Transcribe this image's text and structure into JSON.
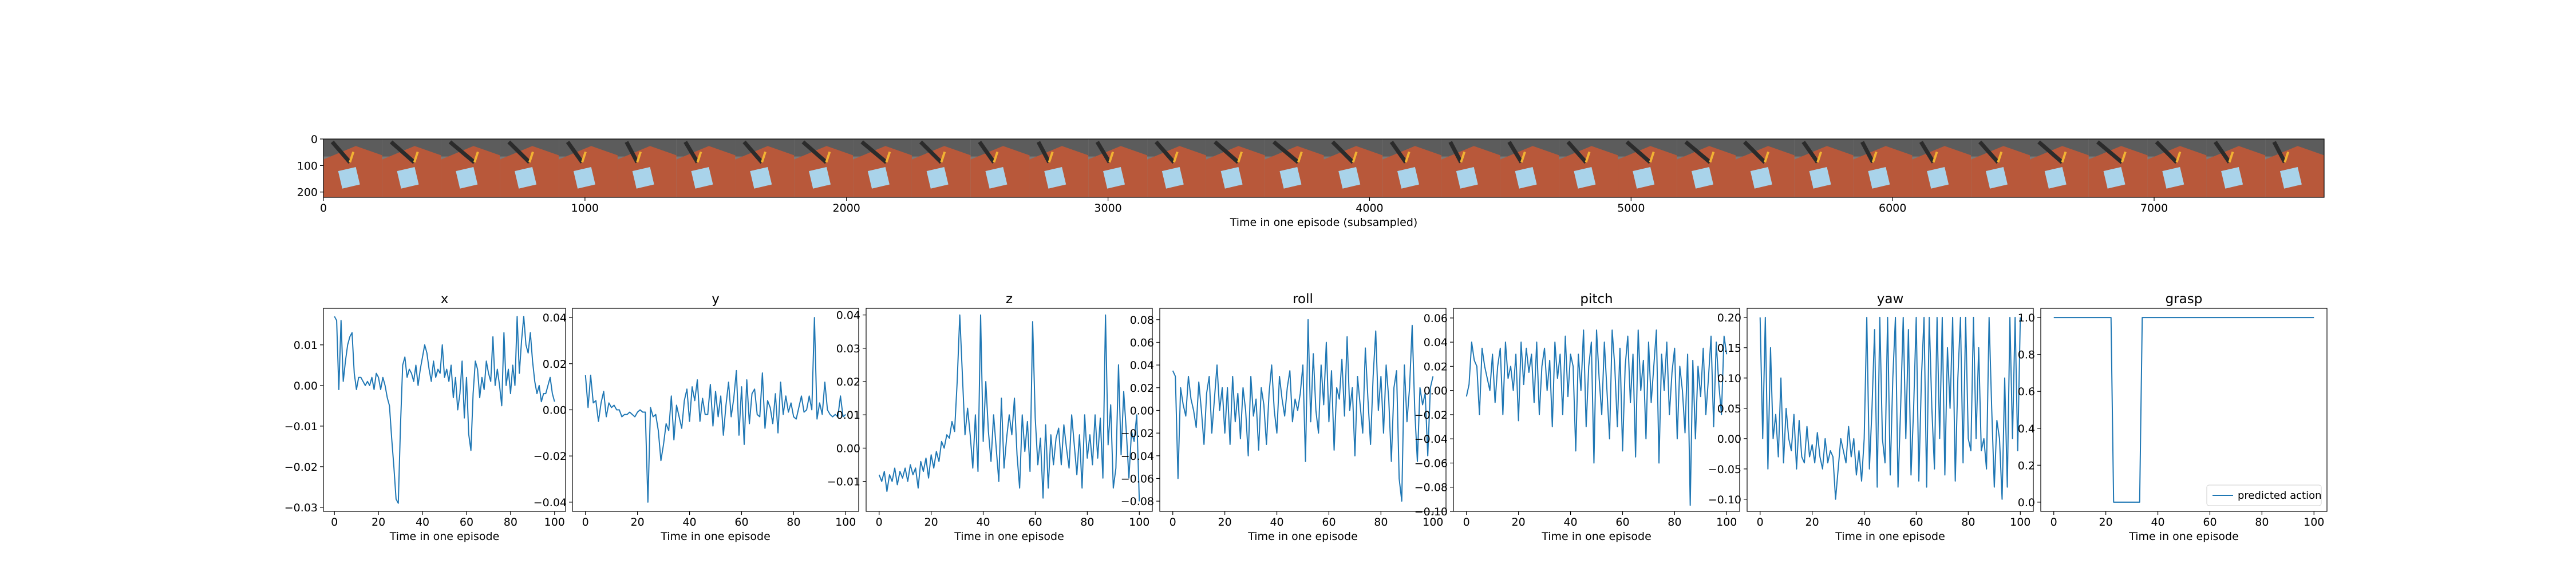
{
  "chart_data": [
    {
      "type": "image",
      "title": "",
      "xlabel": "Time in one episode (subsampled)",
      "ylabel": "",
      "xlim": [
        0,
        7650
      ],
      "ylim": [
        0,
        220
      ],
      "xticks": [
        0,
        1000,
        2000,
        3000,
        4000,
        5000,
        6000,
        7000
      ],
      "yticks": [
        0,
        100,
        200
      ],
      "frames": 34
    },
    {
      "type": "line",
      "title": "x",
      "xlabel": "Time in one episode",
      "xlim": [
        -5,
        105
      ],
      "ylim": [
        -0.031,
        0.019
      ],
      "xticks": [
        0,
        20,
        40,
        60,
        80,
        100
      ],
      "yticks": [
        -0.03,
        -0.02,
        -0.01,
        0.0,
        0.01
      ],
      "yfmt": 2,
      "series": [
        {
          "values": [
            0.017,
            0.016,
            -0.001,
            0.016,
            0.001,
            0.006,
            0.01,
            0.012,
            0.013,
            0.003,
            -0.001,
            0.002,
            0.002,
            0.001,
            0.0,
            0.001,
            0.0,
            0.002,
            -0.001,
            0.003,
            0.002,
            -0.001,
            0.002,
            0.0,
            -0.003,
            -0.005,
            -0.013,
            -0.02,
            -0.028,
            -0.029,
            -0.01,
            0.005,
            0.007,
            0.002,
            0.004,
            0.003,
            0.001,
            0.005,
            0.0,
            0.004,
            0.007,
            0.01,
            0.008,
            0.004,
            0.001,
            0.006,
            0.002,
            0.004,
            0.003,
            0.01,
            0.002,
            0.004,
            0.001,
            0.005,
            -0.003,
            0.002,
            -0.006,
            -0.002,
            0.006,
            -0.008,
            0.002,
            -0.012,
            -0.016,
            -0.002,
            0.006,
            0.004,
            -0.003,
            0.002,
            -0.001,
            0.006,
            0.003,
            0.001,
            0.012,
            0.0,
            0.004,
            0.0,
            -0.005,
            0.013,
            0.0,
            0.004,
            -0.002,
            0.005,
            0.0,
            0.017,
            0.003,
            0.011,
            0.017,
            0.01,
            0.008,
            0.013,
            0.006,
            0.001,
            -0.002,
            0.0,
            -0.004,
            -0.002,
            -0.002,
            0.0,
            0.002,
            -0.002,
            -0.004
          ]
        }
      ]
    },
    {
      "type": "line",
      "title": "y",
      "xlabel": "Time in one episode",
      "xlim": [
        -5,
        105
      ],
      "ylim": [
        -0.044,
        0.044
      ],
      "xticks": [
        0,
        20,
        40,
        60,
        80,
        100
      ],
      "yticks": [
        -0.04,
        -0.02,
        0.0,
        0.02,
        0.04
      ],
      "yfmt": 2,
      "series": [
        {
          "values": [
            0.015,
            0.001,
            0.015,
            0.003,
            0.004,
            -0.005,
            0.003,
            0.008,
            -0.003,
            0.003,
            0.001,
            0.002,
            0.0,
            0.0,
            -0.003,
            -0.002,
            -0.002,
            -0.001,
            -0.002,
            -0.003,
            -0.001,
            0.0,
            -0.001,
            -0.001,
            -0.04,
            0.001,
            -0.003,
            -0.002,
            -0.009,
            -0.022,
            -0.015,
            -0.006,
            -0.009,
            0.006,
            -0.013,
            0.002,
            -0.003,
            -0.008,
            0.004,
            0.009,
            -0.005,
            0.01,
            0.004,
            0.013,
            -0.005,
            0.005,
            -0.002,
            -0.002,
            0.011,
            -0.007,
            0.008,
            -0.003,
            0.006,
            -0.011,
            0.002,
            0.012,
            -0.003,
            0.005,
            0.017,
            -0.011,
            0.01,
            -0.015,
            0.013,
            -0.006,
            0.007,
            0.009,
            -0.002,
            -0.003,
            0.016,
            -0.008,
            0.004,
            0.001,
            -0.006,
            0.007,
            -0.01,
            0.012,
            -0.002,
            0.006,
            -0.001,
            0.003,
            -0.003,
            -0.004,
            0.001,
            0.006,
            -0.001,
            0.0,
            0.006,
            0.0,
            0.04,
            -0.004,
            0.003,
            -0.002,
            0.012,
            0.0,
            -0.002,
            -0.003,
            -0.002,
            -0.003,
            0.006,
            -0.003,
            -0.002
          ]
        }
      ]
    },
    {
      "type": "line",
      "title": "z",
      "xlabel": "Time in one episode",
      "xlim": [
        -5,
        105
      ],
      "ylim": [
        -0.019,
        0.042
      ],
      "xticks": [
        0,
        20,
        40,
        60,
        80,
        100
      ],
      "yticks": [
        -0.01,
        0.0,
        0.01,
        0.02,
        0.03,
        0.04
      ],
      "yfmt": 2,
      "series": [
        {
          "values": [
            -0.008,
            -0.01,
            -0.007,
            -0.013,
            -0.008,
            -0.01,
            -0.006,
            -0.011,
            -0.007,
            -0.009,
            -0.006,
            -0.01,
            -0.005,
            -0.008,
            -0.006,
            -0.012,
            -0.004,
            -0.007,
            -0.003,
            -0.009,
            -0.002,
            -0.006,
            -0.001,
            -0.004,
            0.002,
            0.0,
            0.004,
            0.003,
            0.008,
            0.005,
            0.02,
            0.04,
            0.022,
            0.004,
            0.012,
            0.004,
            -0.006,
            0.01,
            -0.007,
            0.04,
            0.002,
            0.02,
            0.005,
            -0.004,
            0.01,
            0.0,
            -0.01,
            0.015,
            -0.006,
            0.003,
            0.01,
            0.004,
            0.015,
            -0.002,
            -0.012,
            0.01,
            -0.001,
            0.008,
            -0.007,
            0.038,
            0.009,
            -0.005,
            0.003,
            -0.015,
            0.007,
            -0.012,
            0.004,
            -0.005,
            0.003,
            0.006,
            -0.005,
            0.007,
            0.0,
            -0.006,
            0.01,
            0.001,
            -0.008,
            0.004,
            -0.012,
            0.01,
            -0.003,
            0.004,
            -0.005,
            0.01,
            -0.003,
            0.009,
            -0.009,
            0.04,
            0.001,
            0.013,
            -0.012,
            -0.006,
            0.025,
            -0.002,
            0.017,
            0.005,
            -0.009,
            0.005,
            0.002,
            0.01,
            -0.016
          ]
        }
      ]
    },
    {
      "type": "line",
      "title": "roll",
      "xlabel": "Time in one episode",
      "xlim": [
        -5,
        105
      ],
      "ylim": [
        -0.089,
        0.09
      ],
      "xticks": [
        0,
        20,
        40,
        60,
        80,
        100
      ],
      "yticks": [
        -0.08,
        -0.06,
        -0.04,
        -0.02,
        0.0,
        0.02,
        0.04,
        0.06,
        0.08
      ],
      "yfmt": 2,
      "series": [
        {
          "values": [
            0.035,
            0.03,
            -0.06,
            0.02,
            0.005,
            -0.005,
            0.03,
            0.01,
            0.0,
            -0.015,
            0.025,
            0.0,
            -0.03,
            0.015,
            0.03,
            -0.02,
            0.01,
            0.04,
            0.0,
            0.02,
            -0.02,
            0.02,
            -0.03,
            0.03,
            -0.01,
            0.015,
            -0.025,
            0.02,
            0.0,
            -0.04,
            0.03,
            -0.005,
            0.01,
            -0.035,
            0.02,
            0.005,
            -0.03,
            0.015,
            0.04,
            0.0,
            -0.02,
            0.03,
            0.01,
            -0.005,
            0.02,
            0.035,
            -0.01,
            0.01,
            0.0,
            0.015,
            0.04,
            -0.045,
            0.08,
            -0.01,
            0.05,
            0.0,
            -0.02,
            0.04,
            0.005,
            0.06,
            -0.01,
            0.035,
            -0.035,
            0.02,
            0.01,
            0.045,
            -0.005,
            0.065,
            0.0,
            0.02,
            -0.04,
            0.03,
            0.005,
            -0.02,
            0.055,
            0.01,
            -0.03,
            0.03,
            0.07,
            0.0,
            0.03,
            -0.02,
            0.04,
            0.01,
            -0.045,
            0.02,
            0.035,
            -0.06,
            -0.08,
            0.04,
            -0.01,
            0.02,
            0.075,
            0.0,
            -0.045,
            0.02,
            0.005,
            0.015,
            -0.04,
            0.02,
            0.03
          ]
        }
      ]
    },
    {
      "type": "line",
      "title": "pitch",
      "xlabel": "Time in one episode",
      "xlim": [
        -5,
        105
      ],
      "ylim": [
        -0.1,
        0.068
      ],
      "xticks": [
        0,
        20,
        40,
        60,
        80,
        100
      ],
      "yticks": [
        -0.1,
        -0.08,
        -0.06,
        -0.04,
        -0.02,
        0.0,
        0.02,
        0.04,
        0.06
      ],
      "yfmt": 2,
      "series": [
        {
          "values": [
            -0.005,
            0.005,
            0.04,
            0.025,
            0.02,
            -0.02,
            0.035,
            0.02,
            0.01,
            0.0,
            0.03,
            -0.01,
            0.02,
            0.035,
            -0.02,
            0.04,
            0.01,
            0.02,
            0.0,
            0.03,
            -0.025,
            0.04,
            0.005,
            0.035,
            0.015,
            0.03,
            -0.01,
            0.04,
            -0.02,
            0.02,
            0.035,
            0.0,
            0.025,
            -0.03,
            0.04,
            0.01,
            0.03,
            -0.02,
            0.045,
            -0.005,
            0.03,
            0.02,
            -0.05,
            0.03,
            0.0,
            0.05,
            -0.03,
            0.02,
            0.04,
            -0.06,
            0.05,
            0.01,
            -0.02,
            0.04,
            0.0,
            -0.04,
            0.05,
            0.02,
            -0.03,
            0.035,
            -0.05,
            0.02,
            0.045,
            -0.01,
            0.03,
            -0.055,
            0.05,
            0.0,
            0.025,
            -0.04,
            0.04,
            -0.01,
            0.02,
            0.05,
            -0.06,
            0.03,
            0.0,
            0.04,
            -0.02,
            0.015,
            0.035,
            -0.04,
            0.02,
            0.0,
            -0.035,
            0.03,
            -0.095,
            0.025,
            -0.04,
            0.02,
            -0.005,
            0.035,
            -0.02,
            0.01,
            0.045,
            -0.03,
            0.04,
            0.005,
            -0.02,
            0.045,
            0.03
          ]
        }
      ]
    },
    {
      "type": "line",
      "title": "yaw",
      "xlabel": "Time in one episode",
      "xlim": [
        -5,
        105
      ],
      "ylim": [
        -0.12,
        0.215
      ],
      "xticks": [
        0,
        20,
        40,
        60,
        80,
        100
      ],
      "yticks": [
        -0.1,
        -0.05,
        0.0,
        0.05,
        0.1,
        0.15,
        0.2
      ],
      "yfmt": 2,
      "series": [
        {
          "values": [
            0.2,
            0.0,
            0.2,
            -0.05,
            0.15,
            0.0,
            0.04,
            -0.03,
            0.1,
            -0.04,
            0.05,
            0.0,
            -0.02,
            0.04,
            -0.05,
            0.03,
            -0.03,
            -0.04,
            0.02,
            -0.03,
            -0.01,
            -0.04,
            0.01,
            -0.03,
            -0.05,
            0.0,
            -0.04,
            -0.02,
            -0.03,
            -0.1,
            -0.05,
            0.0,
            -0.02,
            -0.04,
            0.02,
            -0.03,
            0.0,
            -0.06,
            -0.02,
            -0.07,
            0.0,
            0.2,
            -0.05,
            0.05,
            0.18,
            -0.08,
            0.2,
            0.0,
            -0.04,
            0.2,
            -0.06,
            0.1,
            0.2,
            -0.08,
            0.05,
            0.2,
            0.0,
            0.18,
            -0.06,
            0.05,
            0.2,
            -0.07,
            0.1,
            0.2,
            -0.08,
            0.2,
            0.05,
            -0.05,
            0.2,
            0.0,
            0.2,
            -0.06,
            0.15,
            0.05,
            0.2,
            -0.07,
            0.1,
            0.2,
            -0.04,
            0.2,
            0.0,
            -0.02,
            0.2,
            0.0,
            0.15,
            -0.02,
            0.0,
            -0.05,
            0.2,
            0.05,
            -0.08,
            0.03,
            0.0,
            -0.1,
            0.1,
            -0.08,
            0.2,
            0.0,
            0.2,
            -0.02,
            0.2
          ]
        }
      ]
    },
    {
      "type": "line",
      "title": "grasp",
      "xlabel": "Time in one episode",
      "xlim": [
        -5,
        105
      ],
      "ylim": [
        -0.05,
        1.05
      ],
      "xticks": [
        0,
        20,
        40,
        60,
        80,
        100
      ],
      "yticks": [
        0.0,
        0.2,
        0.4,
        0.6,
        0.8,
        1.0
      ],
      "yfmt": 1,
      "legend": "lower right",
      "series": [
        {
          "name": "predicted action",
          "values": [
            1,
            1,
            1,
            1,
            1,
            1,
            1,
            1,
            1,
            1,
            1,
            1,
            1,
            1,
            1,
            1,
            1,
            1,
            1,
            1,
            1,
            1,
            1,
            0,
            0,
            0,
            0,
            0,
            0,
            0,
            0,
            0,
            0,
            0,
            1,
            1,
            1,
            1,
            1,
            1,
            1,
            1,
            1,
            1,
            1,
            1,
            1,
            1,
            1,
            1,
            1,
            1,
            1,
            1,
            1,
            1,
            1,
            1,
            1,
            1,
            1,
            1,
            1,
            1,
            1,
            1,
            1,
            1,
            1,
            1,
            1,
            1,
            1,
            1,
            1,
            1,
            1,
            1,
            1,
            1,
            1,
            1,
            1,
            1,
            1,
            1,
            1,
            1,
            1,
            1,
            1,
            1,
            1,
            1,
            1,
            1,
            1,
            1,
            1,
            1,
            1
          ]
        }
      ]
    }
  ]
}
